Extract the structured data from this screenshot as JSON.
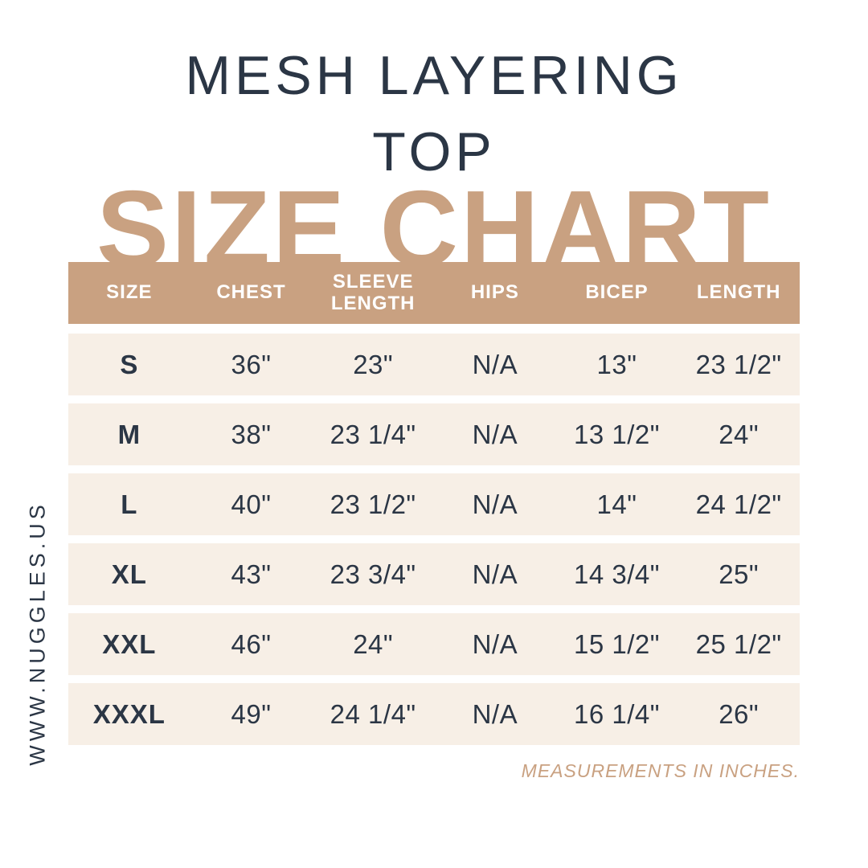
{
  "page": {
    "product_title_line1": "MESH LAYERING",
    "product_title_line2": "TOP",
    "chart_heading": "SIZE CHART",
    "website_vertical": "WWW.NUGGLES.US",
    "footnote": "MEASUREMENTS IN INCHES."
  },
  "colors": {
    "tan": "#C9A181",
    "navy": "#2B3645",
    "row_cream": "#F7EFE6",
    "header_text": "#FFFFFF",
    "page_bg": "#FFFFFF"
  },
  "chart_data": {
    "type": "table",
    "title": "MESH LAYERING TOP SIZE CHART",
    "units": "inches",
    "columns": [
      "SIZE",
      "CHEST",
      "SLEEVE LENGTH",
      "HIPS",
      "BICEP",
      "LENGTH"
    ],
    "rows": [
      {
        "size": "S",
        "chest": "36\"",
        "sleeve_length": "23\"",
        "hips": "N/A",
        "bicep": "13\"",
        "length": "23 1/2\""
      },
      {
        "size": "M",
        "chest": "38\"",
        "sleeve_length": "23 1/4\"",
        "hips": "N/A",
        "bicep": "13 1/2\"",
        "length": "24\""
      },
      {
        "size": "L",
        "chest": "40\"",
        "sleeve_length": "23 1/2\"",
        "hips": "N/A",
        "bicep": "14\"",
        "length": "24 1/2\""
      },
      {
        "size": "XL",
        "chest": "43\"",
        "sleeve_length": "23 3/4\"",
        "hips": "N/A",
        "bicep": "14 3/4\"",
        "length": "25\""
      },
      {
        "size": "XXL",
        "chest": "46\"",
        "sleeve_length": "24\"",
        "hips": "N/A",
        "bicep": "15 1/2\"",
        "length": "25 1/2\""
      },
      {
        "size": "XXXL",
        "chest": "49\"",
        "sleeve_length": "24 1/4\"",
        "hips": "N/A",
        "bicep": "16 1/4\"",
        "length": "26\""
      }
    ]
  }
}
